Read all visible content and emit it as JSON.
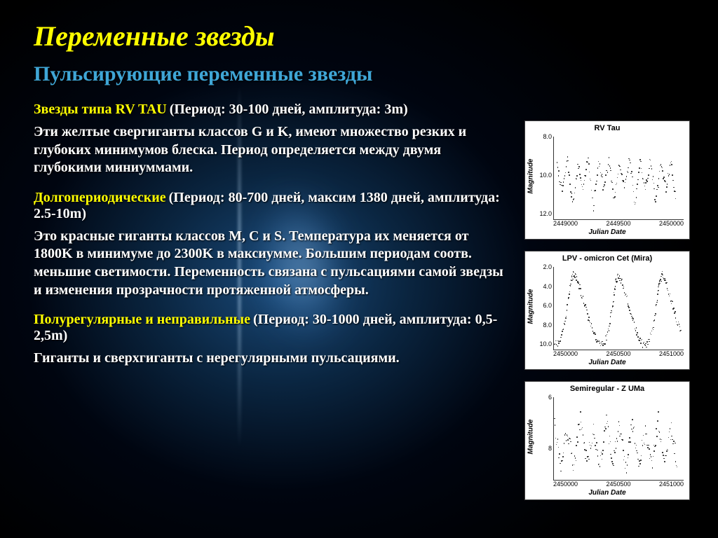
{
  "title": "Переменные звезды",
  "subtitle": "Пульсирующие переменные звезды",
  "title_color": "#ffff00",
  "subtitle_color": "#3fa6d6",
  "body_color": "#ffffff",
  "title_fontsize": 40,
  "subtitle_fontsize": 30,
  "body_fontsize": 20,
  "sections": [
    {
      "heading": "Звезды типа RV TAU",
      "params": " (Период: 30-100 дней, амплитуда: 3m)",
      "body": "Эти желтые свергиганты классов G и K, имеют множество резких и глубоких минимумов блеска. Период определяется между двумя глубокими миниуммами."
    },
    {
      "heading": "Долгопериодические",
      "params": " (Период: 80-700 дней, максим 1380 дней, амплитуда: 2.5-10m)",
      "body": "Это красные гиганты классов M, C и S. Температура их меняется от 1800K в минимуме до 2300K в максиумме. Большим периодам соотв. меньшие светимости. Переменность связана с пульсациями самой зведзы и изменения прозрачности протяженной атмосферы."
    },
    {
      "heading": "Полурегулярные и неправильные",
      "params": " (Период: 30-1000 дней, амплитуда: 0,5-2,5m)",
      "body": "Гиганты и сверхгиганты с нерегулярными пульсациями."
    }
  ],
  "charts": [
    {
      "title": "RV Tau",
      "ylabel": "Magnitude",
      "xlabel": "Julian Date",
      "ylim": [
        12.0,
        8.0
      ],
      "yticks": [
        "8.0",
        "10.0",
        "12.0"
      ],
      "xlim": [
        2449000,
        2450000
      ],
      "xticks": [
        "2449000",
        "2449500",
        "2450000"
      ],
      "type": "scatter",
      "curve": [
        {
          "x": 2449020,
          "y": 9.3
        },
        {
          "x": 2449060,
          "y": 10.6
        },
        {
          "x": 2449100,
          "y": 9.1
        },
        {
          "x": 2449140,
          "y": 11.2
        },
        {
          "x": 2449180,
          "y": 9.4
        },
        {
          "x": 2449220,
          "y": 10.3
        },
        {
          "x": 2449260,
          "y": 9.0
        },
        {
          "x": 2449300,
          "y": 11.4
        },
        {
          "x": 2449340,
          "y": 9.2
        },
        {
          "x": 2449380,
          "y": 10.5
        },
        {
          "x": 2449420,
          "y": 9.1
        },
        {
          "x": 2449460,
          "y": 11.1
        },
        {
          "x": 2449500,
          "y": 9.3
        },
        {
          "x": 2449540,
          "y": 10.4
        },
        {
          "x": 2449580,
          "y": 9.0
        },
        {
          "x": 2449620,
          "y": 11.3
        },
        {
          "x": 2449660,
          "y": 9.2
        },
        {
          "x": 2449700,
          "y": 10.6
        },
        {
          "x": 2449740,
          "y": 9.1
        },
        {
          "x": 2449780,
          "y": 11.2
        },
        {
          "x": 2449820,
          "y": 9.3
        },
        {
          "x": 2449860,
          "y": 10.5
        },
        {
          "x": 2449900,
          "y": 9.0
        },
        {
          "x": 2449940,
          "y": 11.4
        }
      ],
      "dot_color": "#222222",
      "bg": "#ffffff",
      "noise": 0.25,
      "density": 8
    },
    {
      "title": "LPV - omicron Cet (Mira)",
      "ylabel": "Magnitude",
      "xlabel": "Julian Date",
      "ylim": [
        10.0,
        2.0
      ],
      "yticks": [
        "2.0",
        "4.0",
        "6.0",
        "8.0",
        "10.0"
      ],
      "xlim": [
        2450000,
        2451000
      ],
      "xticks": [
        "2450000",
        "2450500",
        "2451000"
      ],
      "type": "scatter",
      "curve": [
        {
          "x": 2450000,
          "y": 9.2
        },
        {
          "x": 2450040,
          "y": 9.4
        },
        {
          "x": 2450080,
          "y": 7.5
        },
        {
          "x": 2450110,
          "y": 5.0
        },
        {
          "x": 2450130,
          "y": 3.2
        },
        {
          "x": 2450150,
          "y": 2.6
        },
        {
          "x": 2450180,
          "y": 3.4
        },
        {
          "x": 2450220,
          "y": 5.0
        },
        {
          "x": 2450260,
          "y": 6.8
        },
        {
          "x": 2450300,
          "y": 8.4
        },
        {
          "x": 2450340,
          "y": 9.3
        },
        {
          "x": 2450380,
          "y": 9.5
        },
        {
          "x": 2450420,
          "y": 8.0
        },
        {
          "x": 2450450,
          "y": 5.5
        },
        {
          "x": 2450470,
          "y": 3.6
        },
        {
          "x": 2450490,
          "y": 2.8
        },
        {
          "x": 2450520,
          "y": 3.3
        },
        {
          "x": 2450560,
          "y": 5.0
        },
        {
          "x": 2450600,
          "y": 6.9
        },
        {
          "x": 2450640,
          "y": 8.5
        },
        {
          "x": 2450680,
          "y": 9.4
        },
        {
          "x": 2450720,
          "y": 9.5
        },
        {
          "x": 2450760,
          "y": 7.8
        },
        {
          "x": 2450790,
          "y": 5.2
        },
        {
          "x": 2450810,
          "y": 3.5
        },
        {
          "x": 2450830,
          "y": 2.7
        },
        {
          "x": 2450860,
          "y": 3.4
        },
        {
          "x": 2450900,
          "y": 5.2
        },
        {
          "x": 2450940,
          "y": 7.0
        },
        {
          "x": 2450980,
          "y": 8.6
        }
      ],
      "dot_color": "#222222",
      "bg": "#ffffff",
      "noise": 0.35,
      "density": 8
    },
    {
      "title": "Semiregular - Z UMa",
      "ylabel": "Magnitude",
      "xlabel": "Julian Date",
      "ylim": [
        9,
        6
      ],
      "yticks": [
        "6",
        "8"
      ],
      "xlim": [
        2450000,
        2451000
      ],
      "xticks": [
        "2450000",
        "2450500",
        "2451000"
      ],
      "type": "scatter",
      "curve": [
        {
          "x": 2450000,
          "y": 7.0
        },
        {
          "x": 2450050,
          "y": 8.4
        },
        {
          "x": 2450100,
          "y": 7.1
        },
        {
          "x": 2450150,
          "y": 8.6
        },
        {
          "x": 2450200,
          "y": 6.7
        },
        {
          "x": 2450250,
          "y": 8.3
        },
        {
          "x": 2450300,
          "y": 7.2
        },
        {
          "x": 2450350,
          "y": 8.5
        },
        {
          "x": 2450400,
          "y": 6.8
        },
        {
          "x": 2450450,
          "y": 8.4
        },
        {
          "x": 2450500,
          "y": 7.0
        },
        {
          "x": 2450550,
          "y": 8.6
        },
        {
          "x": 2450600,
          "y": 6.9
        },
        {
          "x": 2450650,
          "y": 8.3
        },
        {
          "x": 2450700,
          "y": 7.3
        },
        {
          "x": 2450750,
          "y": 8.5
        },
        {
          "x": 2450800,
          "y": 6.8
        },
        {
          "x": 2450850,
          "y": 8.4
        },
        {
          "x": 2450900,
          "y": 7.1
        },
        {
          "x": 2450950,
          "y": 8.5
        }
      ],
      "dot_color": "#222222",
      "bg": "#ffffff",
      "noise": 0.3,
      "density": 10
    }
  ]
}
